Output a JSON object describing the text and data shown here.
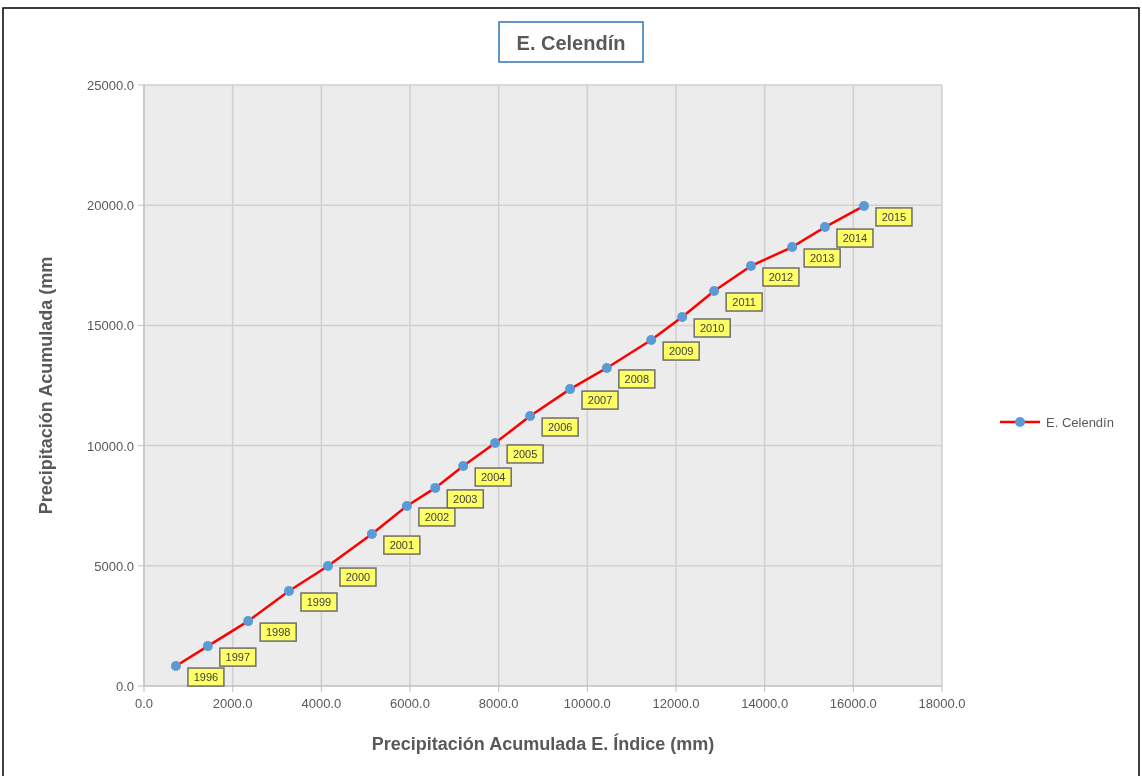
{
  "chart_data": {
    "type": "line",
    "title": "E. Celendín",
    "xlabel": "Precipitación Acumulada E. Índice (mm)",
    "ylabel": "Precipitación Acumulada (mm",
    "x": [
      720,
      1440,
      2350,
      3270,
      4150,
      5140,
      5930,
      6570,
      7200,
      7920,
      8710,
      9610,
      10440,
      11440,
      12140,
      12860,
      13690,
      14620,
      15360,
      16240
    ],
    "series": [
      {
        "name": "E. Celendín",
        "color": "#ff0000",
        "values": [
          830,
          1660,
          2700,
          3950,
          4990,
          6320,
          7490,
          8240,
          9150,
          10110,
          11230,
          12350,
          13230,
          14390,
          15350,
          16430,
          17470,
          18260,
          19090,
          19970
        ]
      }
    ],
    "marker": "circle",
    "line_style": "solid",
    "grid": true,
    "legend": "right",
    "xlim": [
      0,
      18000
    ],
    "ylim": [
      0,
      25000
    ],
    "xticks": [
      {
        "value": 0,
        "label": "0.0"
      },
      {
        "value": 2000,
        "label": "2000.0"
      },
      {
        "value": 4000,
        "label": "4000.0"
      },
      {
        "value": 6000,
        "label": "6000.0"
      },
      {
        "value": 8000,
        "label": "8000.0"
      },
      {
        "value": 10000,
        "label": "10000.0"
      },
      {
        "value": 12000,
        "label": "12000.0"
      },
      {
        "value": 14000,
        "label": "14000.0"
      },
      {
        "value": 16000,
        "label": "16000.0"
      },
      {
        "value": 18000,
        "label": "18000.0"
      }
    ],
    "yticks": [
      {
        "value": 0,
        "label": "0.0"
      },
      {
        "value": 5000,
        "label": "5000.0"
      },
      {
        "value": 10000,
        "label": "10000.0"
      },
      {
        "value": 15000,
        "label": "15000.0"
      },
      {
        "value": 20000,
        "label": "20000.0"
      },
      {
        "value": 25000,
        "label": "25000.0"
      }
    ],
    "annotations": [
      {
        "text": "1996",
        "x": 720,
        "y": 830
      },
      {
        "text": "1997",
        "x": 1440,
        "y": 1660
      },
      {
        "text": "1998",
        "x": 2350,
        "y": 2700
      },
      {
        "text": "1999",
        "x": 3270,
        "y": 3950
      },
      {
        "text": "2000",
        "x": 4150,
        "y": 4990
      },
      {
        "text": "2001",
        "x": 5140,
        "y": 6320
      },
      {
        "text": "2002",
        "x": 5930,
        "y": 7490
      },
      {
        "text": "2003",
        "x": 6570,
        "y": 8240
      },
      {
        "text": "2004",
        "x": 7200,
        "y": 9150
      },
      {
        "text": "2005",
        "x": 7920,
        "y": 10110
      },
      {
        "text": "2006",
        "x": 8710,
        "y": 11230
      },
      {
        "text": "2007",
        "x": 9610,
        "y": 12350
      },
      {
        "text": "2008",
        "x": 10440,
        "y": 13230
      },
      {
        "text": "2009",
        "x": 11440,
        "y": 14390
      },
      {
        "text": "2010",
        "x": 12140,
        "y": 15350
      },
      {
        "text": "2011",
        "x": 12860,
        "y": 16430
      },
      {
        "text": "2012",
        "x": 13690,
        "y": 17470
      },
      {
        "text": "2013",
        "x": 14620,
        "y": 18260
      },
      {
        "text": "2014",
        "x": 15360,
        "y": 19090
      },
      {
        "text": "2015",
        "x": 16240,
        "y": 19970
      }
    ]
  }
}
